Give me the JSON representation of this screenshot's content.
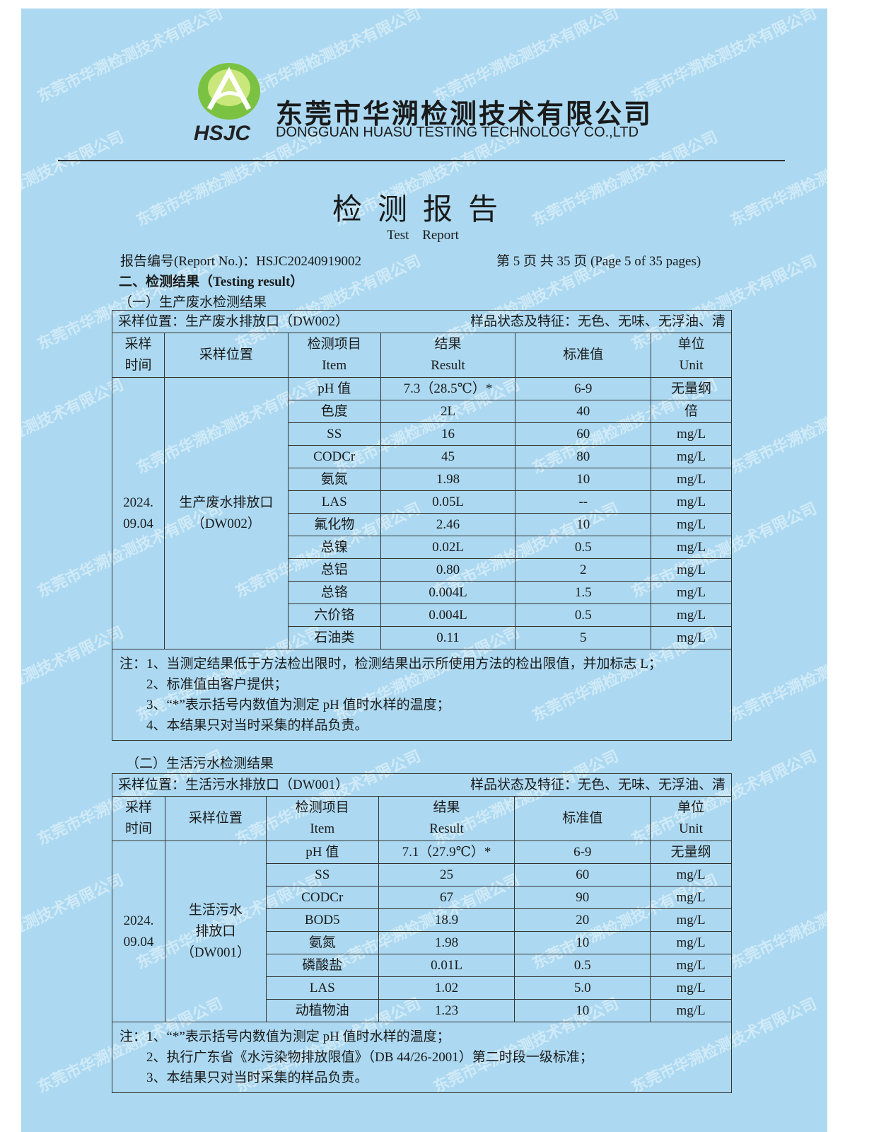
{
  "header": {
    "logo_text": "HSJC",
    "company_cn": "东莞市华溯检测技术有限公司",
    "company_en": "DONGGUAN HUASU TESTING TECHNOLOGY CO.,LTD",
    "watermark": "东莞市华溯检测技术有限公司 DONGGUAN HUASU TESTING TECHNOLOGY CO.,LTD"
  },
  "title_cn": "检测报告",
  "title_en": "Test Report",
  "report_no": "报告编号(Report No.)：HSJC20240919002",
  "page_info": "第 5 页  共 35 页  (Page 5 of 35 pages)",
  "section_title": "二、检测结果（Testing result）",
  "table1": {
    "subtitle": "（一）生产废水检测结果",
    "location": "采样位置：生产废水排放口（DW002）",
    "sample_state": "样品状态及特征：无色、无味、无浮油、清",
    "headers": [
      "采样\n时间",
      "采样位置",
      "检测项目\nItem",
      "结果\nResult",
      "标准值",
      "单位\nUnit"
    ],
    "date": "2024.\n09.04",
    "site": "生产废水排放口\n（DW002）",
    "rows": [
      [
        "pH 值",
        "7.3（28.5℃）*",
        "6-9",
        "无量纲"
      ],
      [
        "色度",
        "2L",
        "40",
        "倍"
      ],
      [
        "SS",
        "16",
        "60",
        "mg/L"
      ],
      [
        "CODCr",
        "45",
        "80",
        "mg/L"
      ],
      [
        "氨氮",
        "1.98",
        "10",
        "mg/L"
      ],
      [
        "LAS",
        "0.05L",
        "--",
        "mg/L"
      ],
      [
        "氟化物",
        "2.46",
        "10",
        "mg/L"
      ],
      [
        "总镍",
        "0.02L",
        "0.5",
        "mg/L"
      ],
      [
        "总铝",
        "0.80",
        "2",
        "mg/L"
      ],
      [
        "总铬",
        "0.004L",
        "1.5",
        "mg/L"
      ],
      [
        "六价铬",
        "0.004L",
        "0.5",
        "mg/L"
      ],
      [
        "石油类",
        "0.11",
        "5",
        "mg/L"
      ]
    ],
    "notes": [
      "注：1、当测定结果低于方法检出限时，检测结果出示所使用方法的检出限值，并加标志 L；",
      "　　2、标准值由客户提供；",
      "　　3、“*”表示括号内数值为测定 pH 值时水样的温度；",
      "　　4、本结果只对当时采集的样品负责。"
    ]
  },
  "table2": {
    "subtitle": "（二）生活污水检测结果",
    "location": "采样位置：生活污水排放口（DW001）",
    "sample_state": "样品状态及特征：无色、无味、无浮油、清",
    "headers": [
      "采样\n时间",
      "采样位置",
      "检测项目\nItem",
      "结果\nResult",
      "标准值",
      "单位\nUnit"
    ],
    "date": "2024.\n09.04",
    "site": "生活污水\n排放口\n（DW001）",
    "rows": [
      [
        "pH 值",
        "7.1（27.9℃）*",
        "6-9",
        "无量纲"
      ],
      [
        "SS",
        "25",
        "60",
        "mg/L"
      ],
      [
        "CODCr",
        "67",
        "90",
        "mg/L"
      ],
      [
        "BOD5",
        "18.9",
        "20",
        "mg/L"
      ],
      [
        "氨氮",
        "1.98",
        "10",
        "mg/L"
      ],
      [
        "磷酸盐",
        "0.01L",
        "0.5",
        "mg/L"
      ],
      [
        "LAS",
        "1.02",
        "5.0",
        "mg/L"
      ],
      [
        "动植物油",
        "1.23",
        "10",
        "mg/L"
      ]
    ],
    "notes": [
      "注：1、“*”表示括号内数值为测定 pH 值时水样的温度；",
      "　　2、执行广东省《水污染物排放限值》（DB 44/26-2001）第二时段一级标准；",
      "　　3、本结果只对当时采集的样品负责。"
    ]
  }
}
